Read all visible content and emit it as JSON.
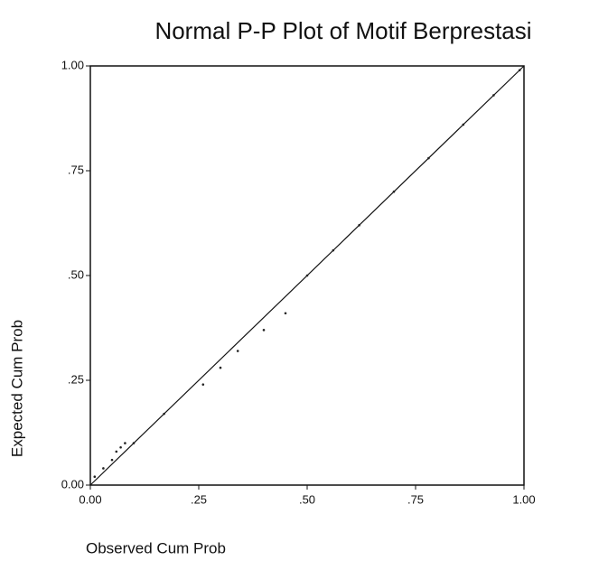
{
  "chart_data": {
    "type": "scatter",
    "title": "Normal P-P Plot of Motif Berprestasi",
    "x_label": "Observed Cum Prob",
    "y_label": "Expected Cum Prob",
    "xlim": [
      0,
      1
    ],
    "ylim": [
      0,
      1
    ],
    "xticks": [
      {
        "value": 0,
        "label": "0.00"
      },
      {
        "value": 0.25,
        "label": ".25"
      },
      {
        "value": 0.5,
        "label": ".50"
      },
      {
        "value": 0.75,
        "label": ".75"
      },
      {
        "value": 1,
        "label": "1.00"
      }
    ],
    "yticks": [
      {
        "value": 0,
        "label": "0.00"
      },
      {
        "value": 0.25,
        "label": ".25"
      },
      {
        "value": 0.5,
        "label": ".50"
      },
      {
        "value": 0.75,
        "label": ".75"
      },
      {
        "value": 1,
        "label": "1.00"
      }
    ],
    "color": "#222222",
    "x": [
      0.01,
      0.03,
      0.05,
      0.06,
      0.07,
      0.08,
      0.1,
      0.17,
      0.26,
      0.3,
      0.34,
      0.4,
      0.45,
      0.5,
      0.56,
      0.62,
      0.7,
      0.78,
      0.86,
      0.93,
      0.99
    ],
    "values": [
      0.02,
      0.04,
      0.06,
      0.08,
      0.09,
      0.1,
      0.1,
      0.17,
      0.24,
      0.28,
      0.32,
      0.37,
      0.41,
      0.5,
      0.56,
      0.62,
      0.7,
      0.78,
      0.86,
      0.93,
      0.99
    ]
  }
}
